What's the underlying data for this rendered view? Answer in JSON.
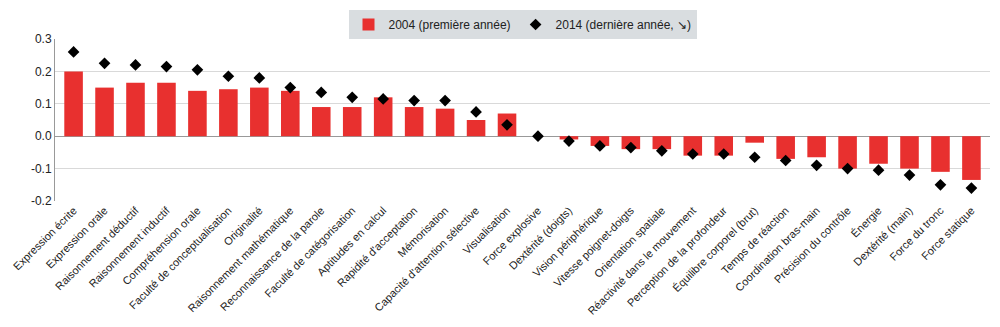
{
  "chart_data": {
    "type": "bar",
    "categories": [
      "Expression écrite",
      "Expression orale",
      "Raisonnement déductif",
      "Raisonnement inductif",
      "Compréhension orale",
      "Faculté de conceptualisation",
      "Originalité",
      "Raisonnement mathématique",
      "Reconnaissance de la parole",
      "Faculté de catégorisation",
      "Aptitudes en calcul",
      "Rapidité d'acceptation",
      "Mémorisation",
      "Capacité d'attention sélective",
      "Visualisation",
      "Force explosive",
      "Dextérité (doigts)",
      "Vision périphérique",
      "Vitesse poignet-doigts",
      "Orientation spatiale",
      "Réactivité dans le mouvement",
      "Perception de la profondeur",
      "Équilibre corporel (brut)",
      "Temps de réaction",
      "Coordination bras-main",
      "Précision du contrôle",
      "Énergie",
      "Dextérité (main)",
      "Force du tronc",
      "Force statique"
    ],
    "series": [
      {
        "name": "2004 (première année)",
        "type": "bar",
        "color": "#e8302f",
        "values": [
          0.2,
          0.15,
          0.165,
          0.165,
          0.14,
          0.145,
          0.15,
          0.14,
          0.09,
          0.09,
          0.12,
          0.09,
          0.085,
          0.05,
          0.07,
          0,
          -0.01,
          -0.03,
          -0.04,
          -0.04,
          -0.06,
          -0.06,
          -0.02,
          -0.07,
          -0.065,
          -0.1,
          -0.085,
          -0.1,
          -0.11,
          -0.135
        ]
      },
      {
        "name": "2014 (dernière année, ↘)",
        "type": "scatter",
        "marker": "diamond",
        "color": "#000000",
        "values": [
          0.26,
          0.225,
          0.22,
          0.215,
          0.205,
          0.185,
          0.18,
          0.15,
          0.135,
          0.12,
          0.115,
          0.11,
          0.11,
          0.075,
          0.035,
          0,
          -0.015,
          -0.03,
          -0.035,
          -0.045,
          -0.055,
          -0.055,
          -0.065,
          -0.075,
          -0.09,
          -0.1,
          -0.105,
          -0.12,
          -0.15,
          -0.16
        ]
      }
    ],
    "ylim": [
      -0.2,
      0.3
    ],
    "yticks": [
      -0.2,
      -0.1,
      {
        "value": 0,
        "label": "0.0"
      },
      0.1,
      0.2,
      0.3
    ],
    "grid": true,
    "legend": "top"
  }
}
